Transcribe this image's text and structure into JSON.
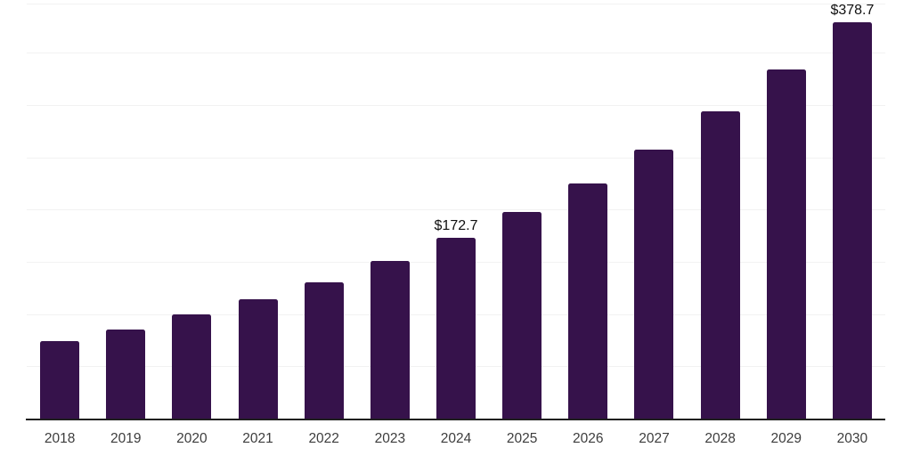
{
  "chart_data": {
    "type": "bar",
    "title": "",
    "xlabel": "",
    "ylabel": "",
    "categories": [
      "2018",
      "2019",
      "2020",
      "2021",
      "2022",
      "2023",
      "2024",
      "2025",
      "2026",
      "2027",
      "2028",
      "2029",
      "2030"
    ],
    "values": [
      74.5,
      85.6,
      99.5,
      114.5,
      130.7,
      150.6,
      172.7,
      198.0,
      225.0,
      257.2,
      293.9,
      333.9,
      378.7
    ],
    "data_labels": [
      {
        "index": 6,
        "text": "$172.7"
      },
      {
        "index": 12,
        "text": "$378.7"
      }
    ],
    "ylim": [
      0,
      397
    ],
    "gridline_step": 50,
    "grid": true,
    "legend": false,
    "y_axis_tick_labels_visible": false
  },
  "colors": {
    "bar": "#36124B",
    "grid": "#f2f2f2",
    "axis": "#1f1f1f",
    "tick_label": "#3d3d3d",
    "data_label": "#101010",
    "background": "#ffffff"
  }
}
